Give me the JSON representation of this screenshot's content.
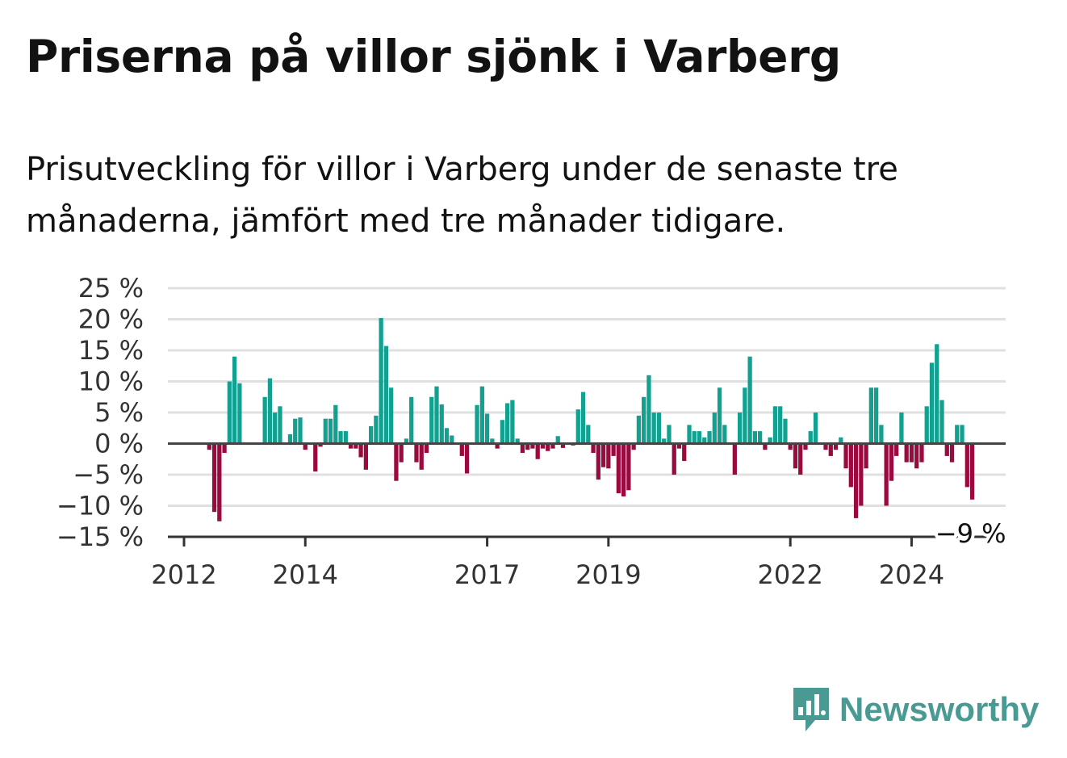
{
  "header": {
    "title": "Priserna på villor sjönk i Varberg",
    "subtitle": "Prisutveckling för villor i Varberg under de senaste tre månaderna, jämfört med tre månader tidigare."
  },
  "brand": {
    "name": "Newsworthy",
    "icon": "newsworthy-logo-icon",
    "color": "#4a9a94"
  },
  "colors": {
    "positive": "#12a090",
    "negative": "#9b0a3e",
    "zero_line": "#444444",
    "grid": "#e0e0e0"
  },
  "chart_data": {
    "type": "bar",
    "start": "2012-02",
    "frequency": "monthly",
    "ylim": [
      -15,
      25
    ],
    "yticks": [
      25,
      20,
      15,
      10,
      5,
      0,
      -5,
      -10,
      -15
    ],
    "ytick_labels": [
      "25 %",
      "20 %",
      "15 %",
      "10 %",
      "5 %",
      "0 %",
      "−5 %",
      "−10 %",
      "−15 %"
    ],
    "xticks": [
      "2012",
      "2014",
      "2017",
      "2019",
      "2022",
      "2024"
    ],
    "grid": true,
    "end_label": "−9 %",
    "values": [
      0,
      0,
      0,
      0,
      -1,
      -11,
      -12.5,
      -1.5,
      10,
      14,
      9.7,
      0,
      0,
      0,
      0,
      7.5,
      10.5,
      5,
      6,
      0,
      1.5,
      4,
      4.2,
      -1,
      0,
      -4.5,
      -0.5,
      4,
      4,
      6.2,
      2,
      2,
      -0.8,
      -0.8,
      -2.2,
      -4.2,
      2.8,
      4.5,
      20.2,
      15.7,
      9,
      -6,
      -3,
      0.8,
      7.5,
      -3,
      -4.2,
      -1.5,
      7.5,
      9.2,
      6.3,
      2.5,
      1.3,
      0,
      -2,
      -4.8,
      0,
      6.2,
      9.2,
      4.8,
      0.8,
      -0.8,
      3.8,
      6.5,
      7,
      0.8,
      -1.5,
      -1,
      -0.8,
      -2.5,
      -0.8,
      -1.2,
      -0.8,
      1.2,
      -0.7,
      0,
      -0.3,
      5.5,
      8.3,
      3,
      -1.5,
      -5.8,
      -3.8,
      -4,
      -2,
      -8,
      -8.5,
      -7.5,
      -1,
      4.5,
      7.5,
      11,
      5,
      5,
      0.8,
      3,
      -5,
      -0.8,
      -2.8,
      3,
      2,
      2,
      1,
      2,
      5,
      9,
      3,
      0,
      -5,
      5,
      9,
      14,
      2,
      2,
      -1,
      1,
      6,
      6,
      4,
      -1,
      -4,
      -5,
      -1,
      2,
      5,
      0,
      -1,
      -2,
      -1,
      1,
      -4,
      -7,
      -12,
      -10,
      -4,
      9,
      9,
      3,
      -10,
      -6,
      -2,
      5,
      -3,
      -3,
      -4,
      -3,
      6,
      13,
      16,
      7,
      -2,
      -3,
      3,
      3,
      -7,
      -9
    ]
  }
}
